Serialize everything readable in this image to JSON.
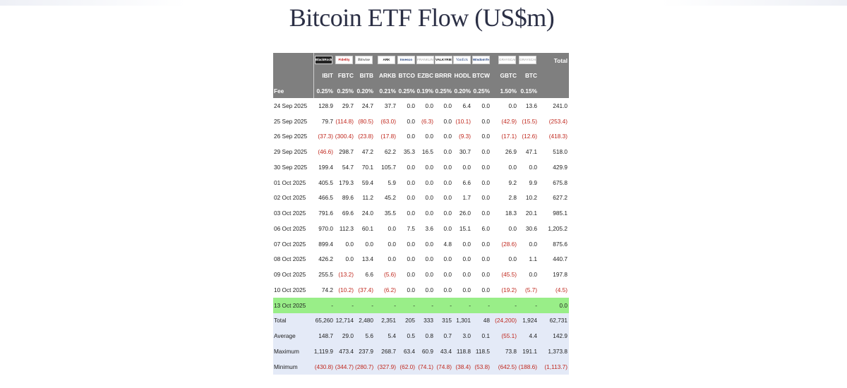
{
  "title": "Bitcoin ETF Flow (US$m)",
  "colors": {
    "header_bg": "#7f7f7f",
    "negative": "#c0281e",
    "today_row": "#99ee88",
    "summary_bg": "#e4eaf7"
  },
  "issuer_logos": [
    {
      "name": "blackrock-logo",
      "text": "BlackRock"
    },
    {
      "name": "fidelity-logo",
      "text": "Fidelity"
    },
    {
      "name": "bitwise-logo",
      "text": "Bitwise"
    },
    {
      "name": "ark-logo",
      "text": "ARK"
    },
    {
      "name": "invesco-logo",
      "text": "Invesco"
    },
    {
      "name": "franklin-logo",
      "text": "FRANKLIN"
    },
    {
      "name": "valkyrie-logo",
      "text": "VALKYRIE"
    },
    {
      "name": "vaneck-logo",
      "text": "VanEck"
    },
    {
      "name": "wisdomtree-logo",
      "text": "WisdomTree"
    },
    {
      "name": "grayscale-gbtc-logo",
      "text": "GRAYSCALE"
    },
    {
      "name": "grayscale-btc-logo",
      "text": "GRAYSCALE"
    }
  ],
  "total_label": "Total",
  "tickers": [
    "IBIT",
    "FBTC",
    "BITB",
    "ARKB",
    "BTCO",
    "EZBC",
    "BRRR",
    "HODL",
    "BTCW",
    "GBTC",
    "BTC"
  ],
  "fee_label": "Fee",
  "fees": [
    "0.25%",
    "0.25%",
    "0.20%",
    "0.21%",
    "0.25%",
    "0.19%",
    "0.25%",
    "0.20%",
    "0.25%",
    "1.50%",
    "0.15%",
    ""
  ],
  "rows": [
    {
      "date": "24 Sep 2025",
      "values": [
        "128.9",
        "29.7",
        "24.7",
        "37.7",
        "0.0",
        "0.0",
        "0.0",
        "6.4",
        "0.0",
        "0.0",
        "13.6",
        "241.0"
      ]
    },
    {
      "date": "25 Sep 2025",
      "values": [
        "79.7",
        "(114.8)",
        "(80.5)",
        "(63.0)",
        "0.0",
        "(6.3)",
        "0.0",
        "(10.1)",
        "0.0",
        "(42.9)",
        "(15.5)",
        "(253.4)"
      ]
    },
    {
      "date": "26 Sep 2025",
      "values": [
        "(37.3)",
        "(300.4)",
        "(23.8)",
        "(17.8)",
        "0.0",
        "0.0",
        "0.0",
        "(9.3)",
        "0.0",
        "(17.1)",
        "(12.6)",
        "(418.3)"
      ]
    },
    {
      "date": "29 Sep 2025",
      "values": [
        "(46.6)",
        "298.7",
        "47.2",
        "62.2",
        "35.3",
        "16.5",
        "0.0",
        "30.7",
        "0.0",
        "26.9",
        "47.1",
        "518.0"
      ]
    },
    {
      "date": "30 Sep 2025",
      "values": [
        "199.4",
        "54.7",
        "70.1",
        "105.7",
        "0.0",
        "0.0",
        "0.0",
        "0.0",
        "0.0",
        "0.0",
        "0.0",
        "429.9"
      ]
    },
    {
      "date": "01 Oct 2025",
      "values": [
        "405.5",
        "179.3",
        "59.4",
        "5.9",
        "0.0",
        "0.0",
        "0.0",
        "6.6",
        "0.0",
        "9.2",
        "9.9",
        "675.8"
      ]
    },
    {
      "date": "02 Oct 2025",
      "values": [
        "466.5",
        "89.6",
        "11.2",
        "45.2",
        "0.0",
        "0.0",
        "0.0",
        "1.7",
        "0.0",
        "2.8",
        "10.2",
        "627.2"
      ]
    },
    {
      "date": "03 Oct 2025",
      "values": [
        "791.6",
        "69.6",
        "24.0",
        "35.5",
        "0.0",
        "0.0",
        "0.0",
        "26.0",
        "0.0",
        "18.3",
        "20.1",
        "985.1"
      ]
    },
    {
      "date": "06 Oct 2025",
      "values": [
        "970.0",
        "112.3",
        "60.1",
        "0.0",
        "7.5",
        "3.6",
        "0.0",
        "15.1",
        "6.0",
        "0.0",
        "30.6",
        "1,205.2"
      ]
    },
    {
      "date": "07 Oct 2025",
      "values": [
        "899.4",
        "0.0",
        "0.0",
        "0.0",
        "0.0",
        "0.0",
        "4.8",
        "0.0",
        "0.0",
        "(28.6)",
        "0.0",
        "875.6"
      ]
    },
    {
      "date": "08 Oct 2025",
      "values": [
        "426.2",
        "0.0",
        "13.4",
        "0.0",
        "0.0",
        "0.0",
        "0.0",
        "0.0",
        "0.0",
        "0.0",
        "1.1",
        "440.7"
      ]
    },
    {
      "date": "09 Oct 2025",
      "values": [
        "255.5",
        "(13.2)",
        "6.6",
        "(5.6)",
        "0.0",
        "0.0",
        "0.0",
        "0.0",
        "0.0",
        "(45.5)",
        "0.0",
        "197.8"
      ]
    },
    {
      "date": "10 Oct 2025",
      "values": [
        "74.2",
        "(10.2)",
        "(37.4)",
        "(6.2)",
        "0.0",
        "0.0",
        "0.0",
        "0.0",
        "0.0",
        "(19.2)",
        "(5.7)",
        "(4.5)"
      ]
    }
  ],
  "today_row": {
    "date": "13 Oct 2025",
    "values": [
      "-",
      "-",
      "-",
      "-",
      "-",
      "-",
      "-",
      "-",
      "-",
      "-",
      "-",
      "0.0"
    ]
  },
  "summary": [
    {
      "label": "Total",
      "values": [
        "65,260",
        "12,714",
        "2,480",
        "2,351",
        "205",
        "333",
        "315",
        "1,301",
        "48",
        "(24,200)",
        "1,924",
        "62,731"
      ]
    },
    {
      "label": "Average",
      "values": [
        "148.7",
        "29.0",
        "5.6",
        "5.4",
        "0.5",
        "0.8",
        "0.7",
        "3.0",
        "0.1",
        "(55.1)",
        "4.4",
        "142.9"
      ]
    },
    {
      "label": "Maximum",
      "values": [
        "1,119.9",
        "473.4",
        "237.9",
        "268.7",
        "63.4",
        "60.9",
        "43.4",
        "118.8",
        "118.5",
        "73.8",
        "191.1",
        "1,373.8"
      ]
    },
    {
      "label": "Minimum",
      "values": [
        "(430.8)",
        "(344.7)",
        "(280.7)",
        "(327.9)",
        "(62.0)",
        "(74.1)",
        "(74.8)",
        "(38.4)",
        "(53.8)",
        "(642.5)",
        "(188.6)",
        "(1,113.7)"
      ]
    }
  ]
}
